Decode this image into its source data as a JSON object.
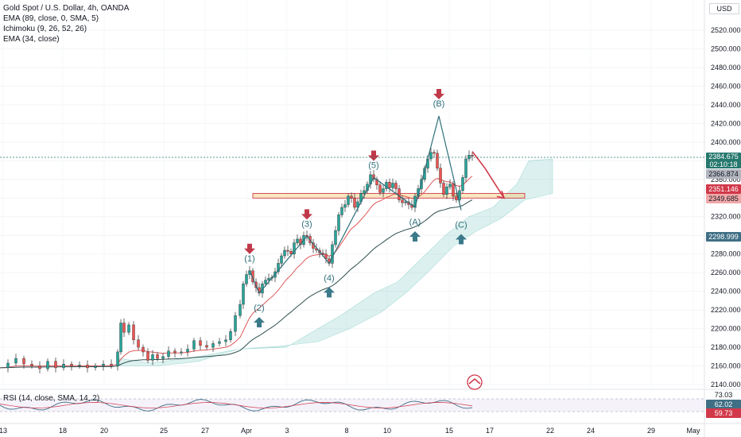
{
  "legend": {
    "symbol": "Gold Spot / U.S. Dollar, 4h, OANDA",
    "ema89": "EMA (89, close, 0, SMA, 5)",
    "ichimoku": "Ichimoku (9, 26, 52, 26)",
    "ema34": "EMA (34, close)"
  },
  "rsi": {
    "label": "RSI (14, close, SMA, 14, 2)",
    "levels": [
      "73.03",
      "62.02",
      "59.73"
    ]
  },
  "currency": "USD",
  "price_tags": [
    {
      "value": "2384.675",
      "sub": "02:10:18",
      "color": "#26786e"
    },
    {
      "value": "2366.874",
      "color": "#b2b5be"
    },
    {
      "value": "2351.146",
      "color": "#d1394a"
    },
    {
      "value": "2349.685",
      "color": "#f0a8a8"
    },
    {
      "value": "2298.999",
      "color": "#3f6f85"
    }
  ],
  "chart_data": {
    "type": "candlestick",
    "title": "Gold Spot / U.S. Dollar, 4h, OANDA",
    "ylim": [
      2140,
      2540
    ],
    "y_ticks": [
      "2520.000",
      "2500.000",
      "2480.000",
      "2460.000",
      "2440.000",
      "2420.000",
      "2400.000",
      "2380.000",
      "2360.000",
      "2340.000",
      "2320.000",
      "2300.000",
      "2280.000",
      "2260.000",
      "2240.000",
      "2220.000",
      "2200.000",
      "2180.000",
      "2160.000",
      "2140.000"
    ],
    "x_ticks": [
      "13",
      "18",
      "20",
      "25",
      "27",
      "Apr",
      "3",
      "8",
      "10",
      "15",
      "17",
      "22",
      "24",
      "29",
      "May"
    ],
    "close_path": [
      [
        0,
        2158
      ],
      [
        10,
        2163
      ],
      [
        20,
        2168
      ],
      [
        30,
        2162
      ],
      [
        40,
        2160
      ],
      [
        50,
        2157
      ],
      [
        60,
        2165
      ],
      [
        70,
        2158
      ],
      [
        80,
        2162
      ],
      [
        90,
        2160
      ],
      [
        100,
        2161
      ],
      [
        110,
        2158
      ],
      [
        120,
        2160
      ],
      [
        130,
        2162
      ],
      [
        140,
        2160
      ],
      [
        148,
        2175
      ],
      [
        152,
        2206
      ],
      [
        156,
        2196
      ],
      [
        162,
        2204
      ],
      [
        168,
        2188
      ],
      [
        174,
        2180
      ],
      [
        180,
        2175
      ],
      [
        186,
        2166
      ],
      [
        192,
        2172
      ],
      [
        198,
        2168
      ],
      [
        205,
        2170
      ],
      [
        212,
        2176
      ],
      [
        220,
        2174
      ],
      [
        228,
        2175
      ],
      [
        236,
        2178
      ],
      [
        244,
        2187
      ],
      [
        252,
        2182
      ],
      [
        260,
        2180
      ],
      [
        268,
        2184
      ],
      [
        276,
        2186
      ],
      [
        284,
        2188
      ],
      [
        290,
        2197
      ],
      [
        296,
        2214
      ],
      [
        302,
        2226
      ],
      [
        306,
        2248
      ],
      [
        310,
        2258
      ],
      [
        314,
        2262
      ],
      [
        318,
        2250
      ],
      [
        322,
        2244
      ],
      [
        326,
        2238
      ],
      [
        330,
        2248
      ],
      [
        334,
        2252
      ],
      [
        338,
        2254
      ],
      [
        342,
        2255
      ],
      [
        346,
        2261
      ],
      [
        350,
        2270
      ],
      [
        354,
        2278
      ],
      [
        358,
        2284
      ],
      [
        362,
        2283
      ],
      [
        366,
        2280
      ],
      [
        370,
        2292
      ],
      [
        374,
        2296
      ],
      [
        378,
        2290
      ],
      [
        382,
        2300
      ],
      [
        386,
        2299
      ],
      [
        390,
        2292
      ],
      [
        394,
        2286
      ],
      [
        398,
        2284
      ],
      [
        402,
        2281
      ],
      [
        406,
        2280
      ],
      [
        410,
        2275
      ],
      [
        414,
        2270
      ],
      [
        418,
        2290
      ],
      [
        422,
        2305
      ],
      [
        426,
        2322
      ],
      [
        430,
        2330
      ],
      [
        434,
        2333
      ],
      [
        438,
        2342
      ],
      [
        442,
        2340
      ],
      [
        446,
        2330
      ],
      [
        450,
        2336
      ],
      [
        454,
        2345
      ],
      [
        458,
        2348
      ],
      [
        462,
        2355
      ],
      [
        466,
        2365
      ],
      [
        470,
        2360
      ],
      [
        474,
        2354
      ],
      [
        478,
        2346
      ],
      [
        482,
        2350
      ],
      [
        486,
        2357
      ],
      [
        490,
        2351
      ],
      [
        494,
        2356
      ],
      [
        498,
        2350
      ],
      [
        502,
        2338
      ],
      [
        506,
        2335
      ],
      [
        510,
        2336
      ],
      [
        514,
        2333
      ],
      [
        518,
        2330
      ],
      [
        522,
        2342
      ],
      [
        526,
        2350
      ],
      [
        530,
        2360
      ],
      [
        534,
        2372
      ],
      [
        538,
        2382
      ],
      [
        542,
        2389
      ],
      [
        546,
        2388
      ],
      [
        550,
        2372
      ],
      [
        554,
        2356
      ],
      [
        558,
        2344
      ],
      [
        562,
        2352
      ],
      [
        566,
        2355
      ],
      [
        570,
        2342
      ],
      [
        574,
        2338
      ],
      [
        578,
        2348
      ],
      [
        582,
        2362
      ],
      [
        586,
        2382
      ],
      [
        590,
        2386
      ],
      [
        594,
        2385
      ]
    ],
    "waves": [
      {
        "label": "(1)",
        "x": 314,
        "y": 2262,
        "arrow": "down"
      },
      {
        "label": "(2)",
        "x": 326,
        "y": 2238,
        "arrow": "up"
      },
      {
        "label": "(3)",
        "x": 386,
        "y": 2299,
        "arrow": "down"
      },
      {
        "label": "(4)",
        "x": 414,
        "y": 2270,
        "arrow": "up"
      },
      {
        "label": "(5)",
        "x": 470,
        "y": 2362,
        "arrow": "down"
      },
      {
        "label": "(A)",
        "x": 522,
        "y": 2330,
        "arrow": "up"
      },
      {
        "label": "(B)",
        "x": 552,
        "y": 2428,
        "arrow": "down"
      },
      {
        "label": "(C)",
        "x": 580,
        "y": 2327,
        "arrow": "up"
      }
    ],
    "zone": [
      2340,
      2345
    ],
    "projection": [
      [
        594,
        2390
      ],
      [
        610,
        2372
      ],
      [
        634,
        2340
      ]
    ]
  }
}
